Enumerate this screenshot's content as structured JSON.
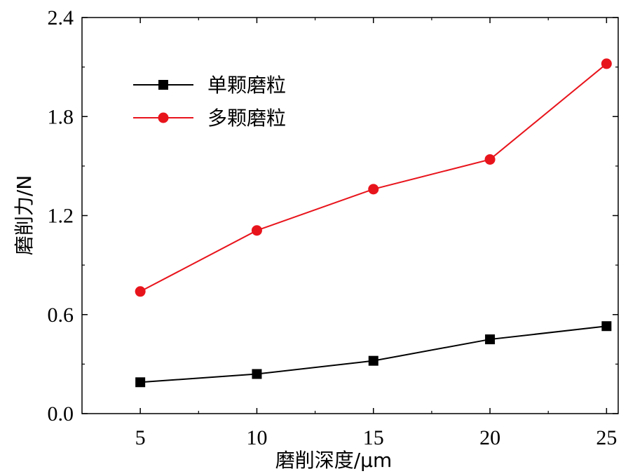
{
  "chart_data": {
    "type": "line",
    "title": "",
    "xlabel": "磨削深度/μm",
    "ylabel": "磨削力/N",
    "x": [
      5,
      10,
      15,
      20,
      25
    ],
    "xlim": [
      2.5,
      25.5
    ],
    "ylim": [
      0.0,
      2.4
    ],
    "xticks": [
      "5",
      "10",
      "15",
      "20",
      "25"
    ],
    "yticks": [
      "0.0",
      "0.6",
      "1.2",
      "1.8",
      "2.4"
    ],
    "grid": false,
    "legend_position": "top-left",
    "series": [
      {
        "name": "单颗磨粒",
        "marker": "square",
        "color": "#000000",
        "values": [
          0.19,
          0.24,
          0.32,
          0.45,
          0.53
        ]
      },
      {
        "name": "多颗磨粒",
        "marker": "circle",
        "color": "#e8141c",
        "values": [
          0.74,
          1.11,
          1.36,
          1.54,
          2.12
        ]
      }
    ]
  }
}
